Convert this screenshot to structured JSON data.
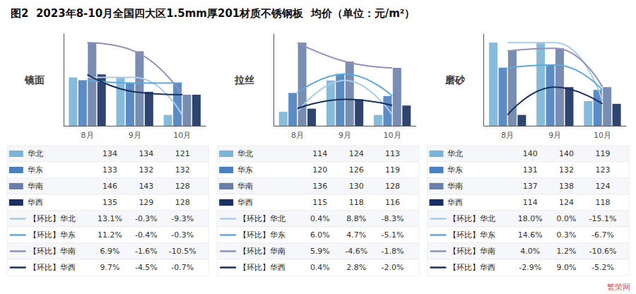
{
  "title": "图2  2023年8-10月全国四大区1.5mm厚201材质不锈钢板  均价（单位：元/m²）",
  "annotations": [
    {
      "text": "繁荣网",
      "color": "#cc2222"
    }
  ],
  "chart_data": [
    {
      "type": "bar",
      "title": "镜面",
      "categories": [
        "8月",
        "9月",
        "10月"
      ],
      "ylim": [
        117.25,
        149
      ],
      "grid": false,
      "tick_labels": "x",
      "series": [
        {
          "name": "华北",
          "type": "bar",
          "color": "#7ab4d8",
          "values": [
            134,
            134,
            121
          ]
        },
        {
          "name": "华东",
          "type": "bar",
          "color": "#4a7fc0",
          "values": [
            133,
            132,
            132
          ]
        },
        {
          "name": "华南",
          "type": "bar",
          "color": "#6a7fa8",
          "values": [
            146,
            143,
            128
          ]
        },
        {
          "name": "华西",
          "type": "bar",
          "color": "#1a3060",
          "values": [
            135,
            129,
            128
          ]
        },
        {
          "name": "华北",
          "type": "line",
          "color": "#aacce8",
          "marker": "none",
          "line_style": "solid",
          "values": [
            134,
            134,
            121
          ]
        },
        {
          "name": "华东",
          "type": "line",
          "color": "#5aaae0",
          "marker": "none",
          "line_style": "solid",
          "values": [
            133,
            132,
            132
          ]
        },
        {
          "name": "华南",
          "type": "line",
          "color": "#9090b8",
          "marker": "none",
          "line_style": "solid",
          "values": [
            146,
            143,
            128
          ]
        },
        {
          "name": "华西",
          "type": "line",
          "color": "#1a3060",
          "marker": "none",
          "line_style": "solid",
          "values": [
            135,
            129,
            128
          ]
        }
      ],
      "table": [
        {
          "name": "华北",
          "marker": "square",
          "color": "#7ab4d8",
          "values": [
            134,
            134,
            121
          ]
        },
        {
          "name": "华东",
          "marker": "square",
          "color": "#4a7fc0",
          "values": [
            133,
            132,
            132
          ]
        },
        {
          "name": "华南",
          "marker": "square",
          "color": "#6a7fa8",
          "values": [
            146,
            143,
            128
          ]
        },
        {
          "name": "华西",
          "marker": "square",
          "color": "#1a3060",
          "values": [
            135,
            129,
            128
          ]
        },
        {
          "name": "【环比】华北",
          "marker": "line",
          "color": "#aacce8",
          "values": [
            13.1,
            -0.3,
            -9.3
          ],
          "value_labels": [
            "13.1%",
            "-0.3%",
            "-9.3%"
          ]
        },
        {
          "name": "【环比】华东",
          "marker": "line",
          "color": "#5aaae0",
          "values": [
            11.2,
            -0.4,
            -0.3
          ],
          "value_labels": [
            "11.2%",
            "-0.4%",
            "-0.3%"
          ]
        },
        {
          "name": "【环比】华南",
          "marker": "line",
          "color": "#9090b8",
          "values": [
            6.9,
            -1.6,
            -10.5
          ],
          "value_labels": [
            "6.9%",
            "-1.6%",
            "-10.5%"
          ]
        },
        {
          "name": "【环比】华西",
          "marker": "line",
          "color": "#1a3060",
          "values": [
            9.7,
            -4.5,
            -0.7
          ],
          "value_labels": [
            "9.7%",
            "-4.5%",
            "-0.7%"
          ]
        }
      ]
    },
    {
      "type": "bar",
      "title": "拉丝",
      "categories": [
        "8月",
        "9月",
        "10月"
      ],
      "ylim": [
        109.55,
        138.76
      ],
      "grid": false,
      "tick_labels": "x",
      "series": [
        {
          "name": "华北",
          "type": "bar",
          "color": "#7ab4d8",
          "values": [
            114,
            124,
            113
          ]
        },
        {
          "name": "华东",
          "type": "bar",
          "color": "#4a7fc0",
          "values": [
            120,
            126,
            119
          ]
        },
        {
          "name": "华南",
          "type": "bar",
          "color": "#6a7fa8",
          "values": [
            136,
            130,
            128
          ]
        },
        {
          "name": "华西",
          "type": "bar",
          "color": "#1a3060",
          "values": [
            115,
            118,
            116
          ]
        },
        {
          "name": "华北",
          "type": "line",
          "color": "#aacce8",
          "marker": "none",
          "line_style": "solid",
          "values": [
            114,
            124,
            113
          ]
        },
        {
          "name": "华东",
          "type": "line",
          "color": "#5aaae0",
          "marker": "none",
          "line_style": "solid",
          "values": [
            120,
            126,
            119
          ]
        },
        {
          "name": "华南",
          "type": "line",
          "color": "#9090b8",
          "marker": "none",
          "line_style": "solid",
          "values": [
            136,
            130,
            128
          ]
        },
        {
          "name": "华西",
          "type": "line",
          "color": "#1a3060",
          "marker": "none",
          "line_style": "solid",
          "values": [
            115,
            118,
            116
          ]
        }
      ],
      "table": [
        {
          "name": "华北",
          "marker": "square",
          "color": "#7ab4d8",
          "values": [
            114,
            124,
            113
          ]
        },
        {
          "name": "华东",
          "marker": "square",
          "color": "#4a7fc0",
          "values": [
            120,
            126,
            119
          ]
        },
        {
          "name": "华南",
          "marker": "square",
          "color": "#6a7fa8",
          "values": [
            136,
            130,
            128
          ]
        },
        {
          "name": "华西",
          "marker": "square",
          "color": "#1a3060",
          "values": [
            115,
            118,
            116
          ]
        },
        {
          "name": "【环比】华北",
          "marker": "line",
          "color": "#aacce8",
          "values": [
            0.4,
            8.8,
            -8.3
          ],
          "value_labels": [
            "0.4%",
            "8.8%",
            "-8.3%"
          ]
        },
        {
          "name": "【环比】华东",
          "marker": "line",
          "color": "#5aaae0",
          "values": [
            6.0,
            4.7,
            -5.1
          ],
          "value_labels": [
            "6.0%",
            "4.7%",
            "-5.1%"
          ]
        },
        {
          "name": "【环比】华南",
          "marker": "line",
          "color": "#9090b8",
          "values": [
            5.9,
            -4.6,
            -1.8
          ],
          "value_labels": [
            "5.9%",
            "-4.6%",
            "-1.8%"
          ]
        },
        {
          "name": "【环比】华西",
          "marker": "line",
          "color": "#1a3060",
          "values": [
            0.4,
            2.8,
            -2.0
          ],
          "value_labels": [
            "0.4%",
            "2.8%",
            "-2.0%"
          ]
        }
      ]
    },
    {
      "type": "bar",
      "title": "磨砂",
      "categories": [
        "8月",
        "9月",
        "10月"
      ],
      "ylim": [
        110.1,
        143.12
      ],
      "grid": false,
      "tick_labels": "x",
      "series": [
        {
          "name": "华北",
          "type": "bar",
          "color": "#7ab4d8",
          "values": [
            140,
            140,
            119
          ]
        },
        {
          "name": "华东",
          "type": "bar",
          "color": "#4a7fc0",
          "values": [
            131,
            132,
            123
          ]
        },
        {
          "name": "华南",
          "type": "bar",
          "color": "#6a7fa8",
          "values": [
            137,
            138,
            124
          ]
        },
        {
          "name": "华西",
          "type": "bar",
          "color": "#1a3060",
          "values": [
            114,
            124,
            118
          ]
        },
        {
          "name": "华北",
          "type": "line",
          "color": "#aacce8",
          "marker": "none",
          "line_style": "solid",
          "values": [
            140,
            140,
            119
          ]
        },
        {
          "name": "华东",
          "type": "line",
          "color": "#5aaae0",
          "marker": "none",
          "line_style": "solid",
          "values": [
            131,
            132,
            123
          ]
        },
        {
          "name": "华南",
          "type": "line",
          "color": "#9090b8",
          "marker": "none",
          "line_style": "solid",
          "values": [
            137,
            138,
            124
          ]
        },
        {
          "name": "华西",
          "type": "line",
          "color": "#1a3060",
          "marker": "none",
          "line_style": "solid",
          "values": [
            114,
            124,
            118
          ]
        }
      ],
      "table": [
        {
          "name": "华北",
          "marker": "square",
          "color": "#7ab4d8",
          "values": [
            140,
            140,
            119
          ]
        },
        {
          "name": "华东",
          "marker": "square",
          "color": "#4a7fc0",
          "values": [
            131,
            132,
            123
          ]
        },
        {
          "name": "华南",
          "marker": "square",
          "color": "#6a7fa8",
          "values": [
            137,
            138,
            124
          ]
        },
        {
          "name": "华西",
          "marker": "square",
          "color": "#1a3060",
          "values": [
            114,
            124,
            118
          ]
        },
        {
          "name": "【环比】华北",
          "marker": "line",
          "color": "#aacce8",
          "values": [
            18.0,
            0.0,
            -15.1
          ],
          "value_labels": [
            "18.0%",
            "0.0%",
            "-15.1%"
          ]
        },
        {
          "name": "【环比】华东",
          "marker": "line",
          "color": "#5aaae0",
          "values": [
            14.6,
            0.3,
            -6.7
          ],
          "value_labels": [
            "14.6%",
            "0.3%",
            "-6.7%"
          ]
        },
        {
          "name": "【环比】华南",
          "marker": "line",
          "color": "#9090b8",
          "values": [
            4.0,
            1.2,
            -10.6
          ],
          "value_labels": [
            "4.0%",
            "1.2%",
            "-10.6%"
          ]
        },
        {
          "name": "【环比】华西",
          "marker": "line",
          "color": "#1a3060",
          "values": [
            -2.9,
            9.0,
            -5.2
          ],
          "value_labels": [
            "-2.9%",
            "9.0%",
            "-5.2%"
          ]
        }
      ]
    }
  ]
}
